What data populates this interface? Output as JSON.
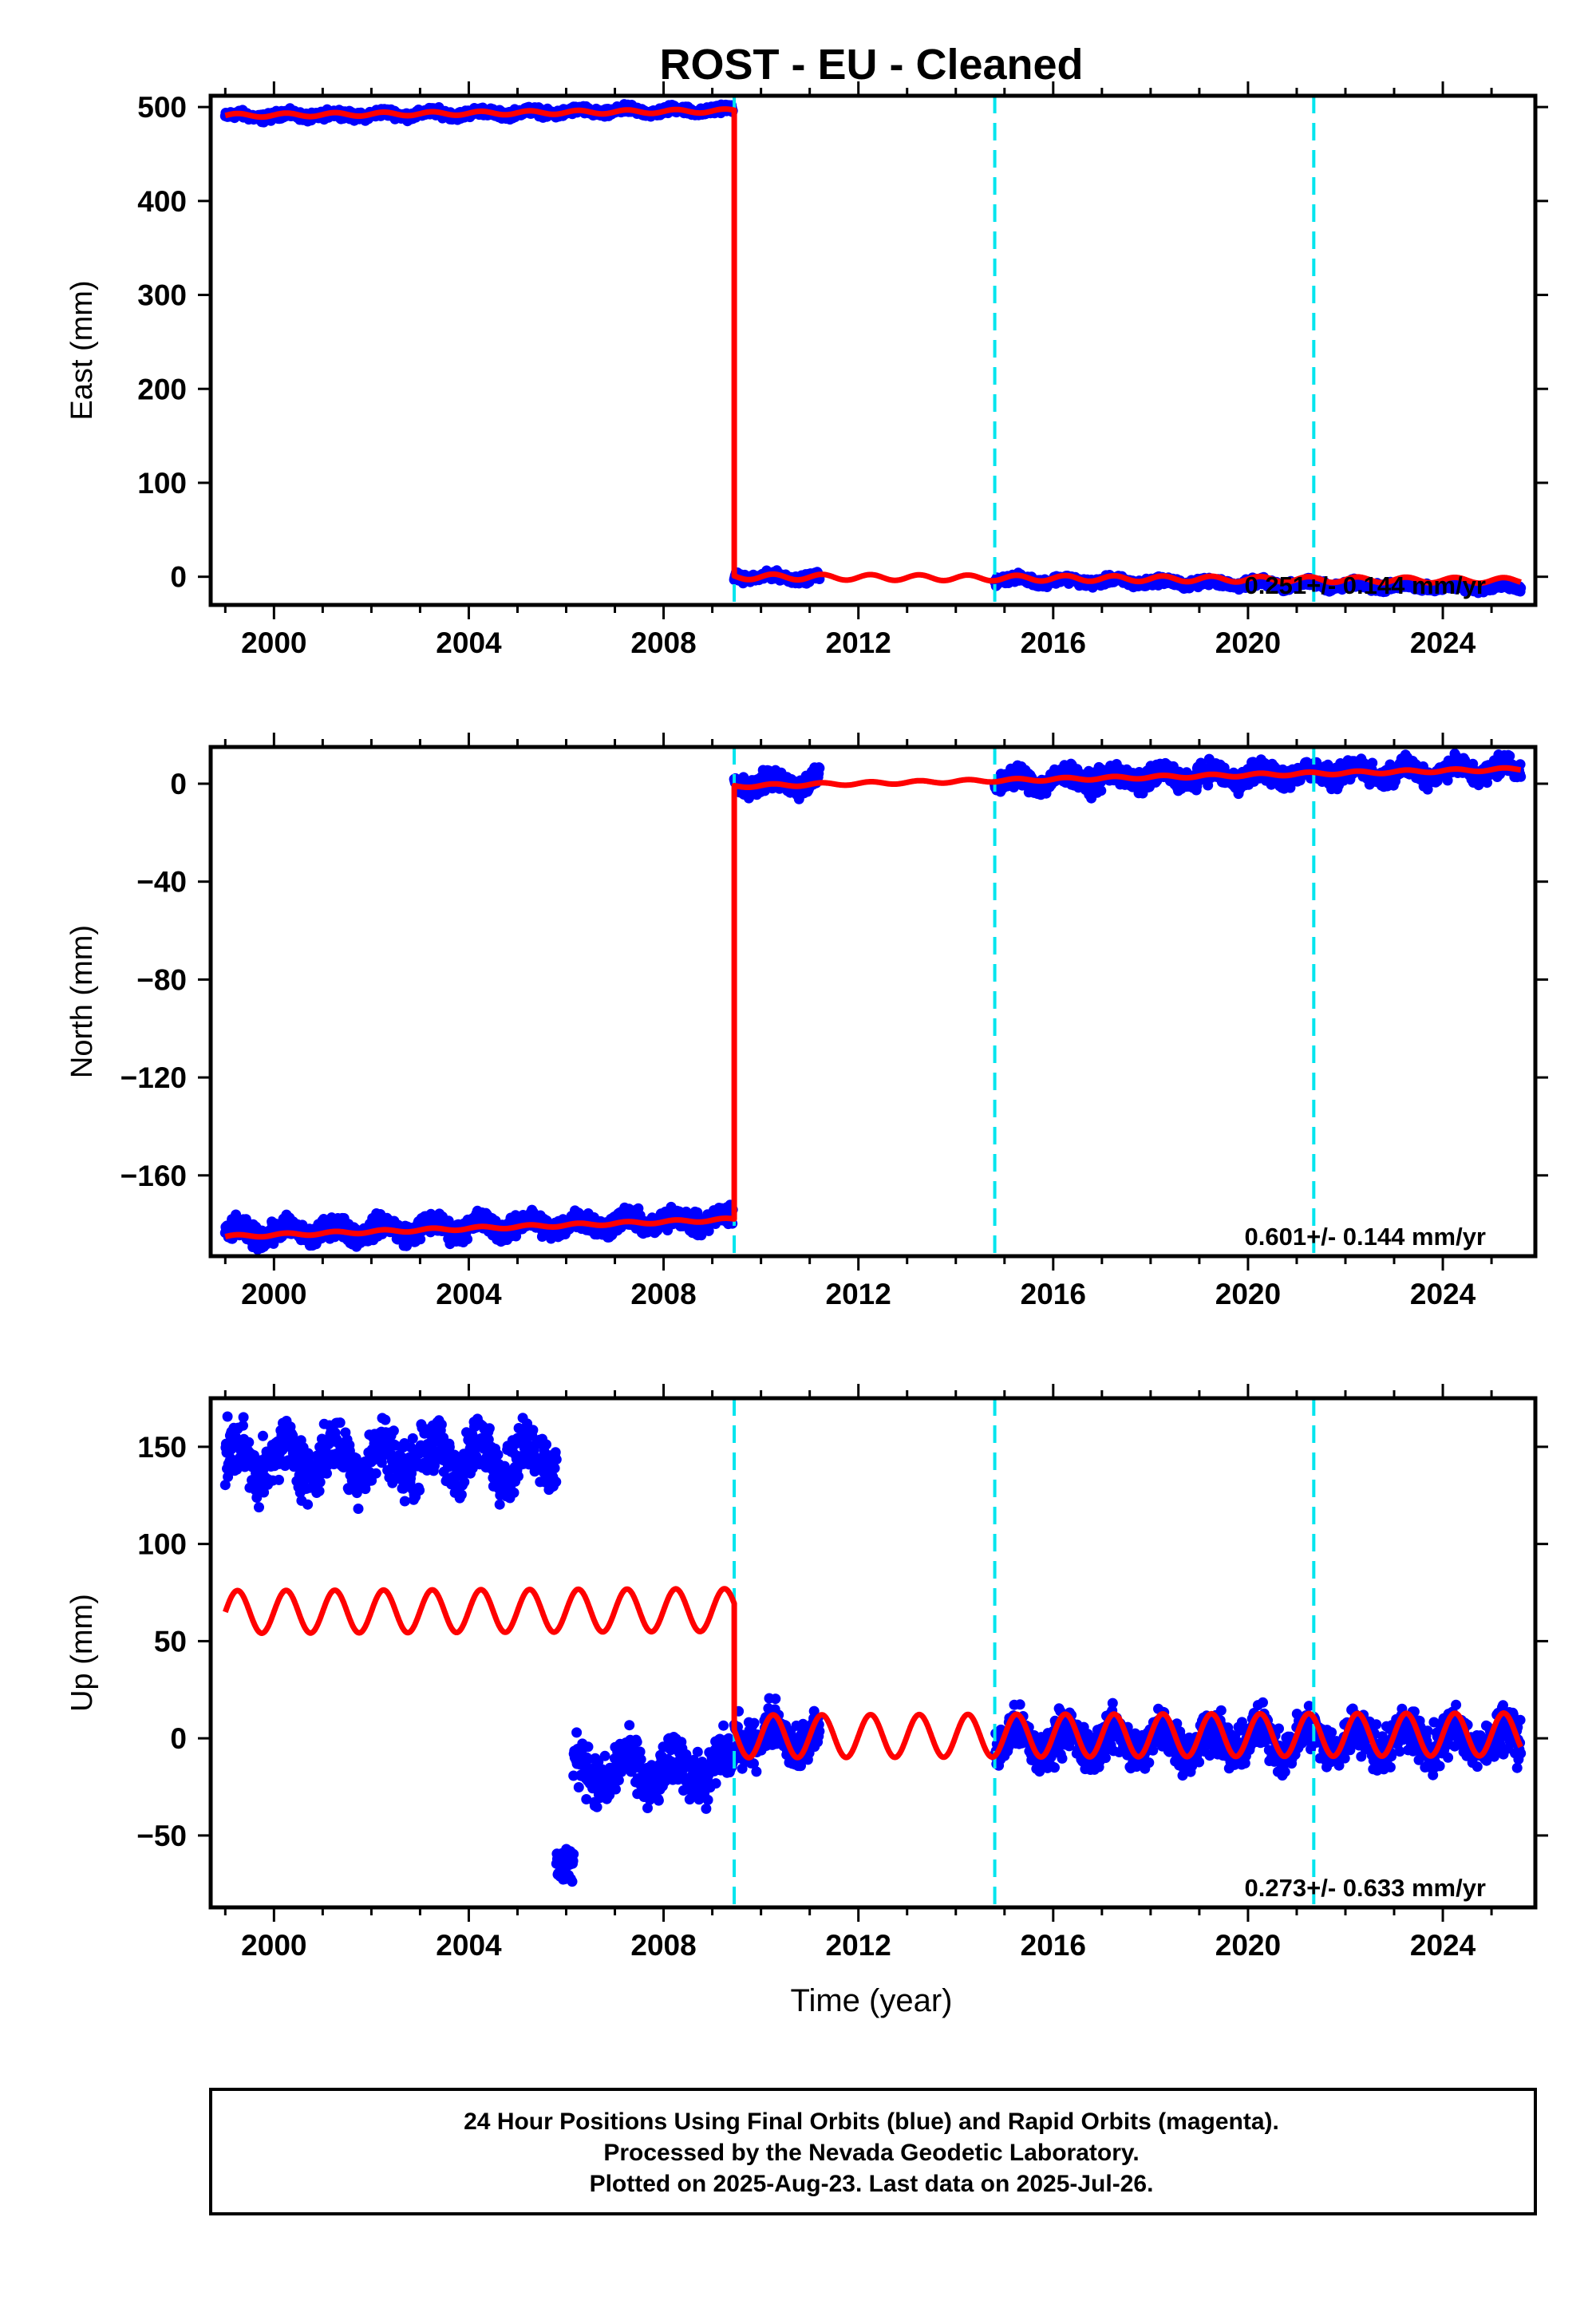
{
  "title": "ROST  - EU - Cleaned",
  "xlabel": "Time (year)",
  "footer": {
    "line1": "24 Hour Positions Using Final Orbits (blue) and Rapid Orbits (magenta).",
    "line2": "Processed by the Nevada Geodetic Laboratory.",
    "line3": "Plotted on 2025-Aug-23. Last data on 2025-Jul-26."
  },
  "colors": {
    "data": "#0000ff",
    "model": "#ff0000",
    "equipment_change": "#00e5ee"
  },
  "chart_data": [
    {
      "type": "scatter",
      "name": "east",
      "ylabel": "East (mm)",
      "rate_label": "0.251+/- 0.144 mm/yr",
      "xlim": [
        1998.7,
        2025.9
      ],
      "ylim": [
        -30,
        512
      ],
      "x_ticks": [
        2000,
        2004,
        2008,
        2012,
        2016,
        2020,
        2024
      ],
      "y_ticks": [
        0,
        100,
        200,
        300,
        400,
        500
      ],
      "equipment_changes": [
        2009.45,
        2014.8,
        2021.35
      ],
      "data_segments": [
        {
          "x_start": 1999.0,
          "x_end": 2009.42,
          "y_start": 490,
          "y_end": 497,
          "noise": 3
        },
        {
          "x_start": 2009.45,
          "x_end": 2011.2,
          "y_start": 0,
          "y_end": -1,
          "noise": 3
        },
        {
          "x_start": 2014.8,
          "x_end": 2025.6,
          "y_start": -3,
          "y_end": -12,
          "noise": 3
        }
      ],
      "model_segments": [
        {
          "x_start": 1999.0,
          "x_end": 2009.45,
          "y_start": 491,
          "y_end": 496,
          "amplitude": 2
        },
        {
          "x_start": 2009.45,
          "x_end": 2025.6,
          "y_start": 0,
          "y_end": -4,
          "amplitude": 3
        }
      ]
    },
    {
      "type": "scatter",
      "name": "north",
      "ylabel": "North (mm)",
      "rate_label": "0.601+/- 0.144 mm/yr",
      "xlim": [
        1998.7,
        2025.9
      ],
      "ylim": [
        -193,
        15
      ],
      "x_ticks": [
        2000,
        2004,
        2008,
        2012,
        2016,
        2020,
        2024
      ],
      "y_ticks": [
        0,
        -40,
        -80,
        -120,
        -160
      ],
      "equipment_changes": [
        2009.45,
        2014.8,
        2021.35
      ],
      "data_segments": [
        {
          "x_start": 1999.0,
          "x_end": 2009.42,
          "y_start": -184,
          "y_end": -178,
          "noise": 3
        },
        {
          "x_start": 2009.45,
          "x_end": 2011.2,
          "y_start": 0,
          "y_end": 1,
          "noise": 3
        },
        {
          "x_start": 2014.8,
          "x_end": 2025.6,
          "y_start": 1,
          "y_end": 6,
          "noise": 3
        }
      ],
      "model_segments": [
        {
          "x_start": 1999.0,
          "x_end": 2009.45,
          "y_start": -185,
          "y_end": -178,
          "amplitude": 0.6
        },
        {
          "x_start": 2009.45,
          "x_end": 2025.6,
          "y_start": -1,
          "y_end": 6,
          "amplitude": 0.6
        }
      ]
    },
    {
      "type": "scatter",
      "name": "up",
      "ylabel": "Up (mm)",
      "rate_label": "0.273+/- 0.633 mm/yr",
      "xlim": [
        1998.7,
        2025.9
      ],
      "ylim": [
        -87,
        175
      ],
      "x_ticks": [
        2000,
        2004,
        2008,
        2012,
        2016,
        2020,
        2024
      ],
      "y_ticks": [
        150,
        100,
        50,
        0,
        -50
      ],
      "equipment_changes": [
        2009.45,
        2014.8,
        2021.35
      ],
      "data_segments": [
        {
          "x_start": 1999.0,
          "x_end": 2005.8,
          "y_start": 143,
          "y_end": 145,
          "noise": 10
        },
        {
          "x_start": 2005.8,
          "x_end": 2006.15,
          "y_start": -60,
          "y_end": -70,
          "noise": 8
        },
        {
          "x_start": 2006.15,
          "x_end": 2009.42,
          "y_start": -18,
          "y_end": -15,
          "noise": 9
        },
        {
          "x_start": 2009.45,
          "x_end": 2011.2,
          "y_start": 2,
          "y_end": 0,
          "noise": 8
        },
        {
          "x_start": 2014.8,
          "x_end": 2025.6,
          "y_start": -2,
          "y_end": 0,
          "noise": 8
        }
      ],
      "model_segments": [
        {
          "x_start": 1999.0,
          "x_end": 2009.45,
          "y_start": 65,
          "y_end": 66,
          "amplitude": 11
        },
        {
          "x_start": 2009.45,
          "x_end": 2025.6,
          "y_start": 1,
          "y_end": 2,
          "amplitude": 11
        }
      ]
    }
  ]
}
